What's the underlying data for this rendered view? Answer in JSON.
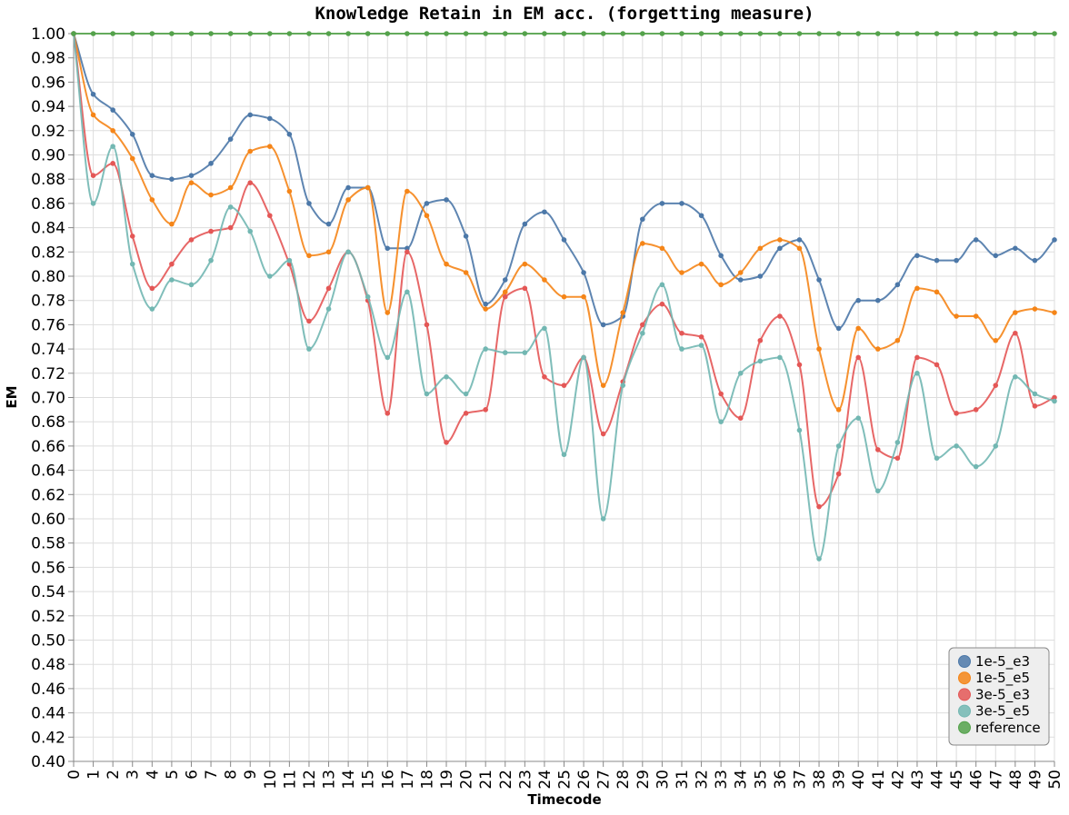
{
  "chart_data": {
    "type": "line",
    "title": "Knowledge Retain in EM acc. (forgetting measure)",
    "xlabel": "Timecode",
    "ylabel": "EM",
    "xlim": [
      0,
      50
    ],
    "ylim": [
      0.4,
      1.0
    ],
    "ytick_step": 0.02,
    "grid": true,
    "legend_placement": "bottom-right",
    "x": [
      0,
      1,
      2,
      3,
      4,
      5,
      6,
      7,
      8,
      9,
      10,
      11,
      12,
      13,
      14,
      15,
      16,
      17,
      18,
      19,
      20,
      21,
      22,
      23,
      24,
      25,
      26,
      27,
      28,
      29,
      30,
      31,
      32,
      33,
      34,
      35,
      36,
      37,
      38,
      39,
      40,
      41,
      42,
      43,
      44,
      45,
      46,
      47,
      48,
      49,
      50
    ],
    "series": [
      {
        "name": "1e-5_e3",
        "color": "#4c78a8",
        "values": [
          1.0,
          0.95,
          0.937,
          0.917,
          0.883,
          0.88,
          0.883,
          0.893,
          0.913,
          0.933,
          0.93,
          0.917,
          0.86,
          0.843,
          0.873,
          0.873,
          0.823,
          0.823,
          0.86,
          0.863,
          0.833,
          0.777,
          0.797,
          0.843,
          0.853,
          0.83,
          0.803,
          0.76,
          0.767,
          0.847,
          0.86,
          0.86,
          0.85,
          0.817,
          0.797,
          0.8,
          0.823,
          0.83,
          0.797,
          0.757,
          0.78,
          0.78,
          0.793,
          0.817,
          0.813,
          0.813,
          0.83,
          0.817,
          0.823,
          0.813,
          0.83
        ]
      },
      {
        "name": "1e-5_e5",
        "color": "#f58518",
        "values": [
          1.0,
          0.933,
          0.92,
          0.897,
          0.863,
          0.843,
          0.877,
          0.867,
          0.873,
          0.903,
          0.907,
          0.87,
          0.817,
          0.82,
          0.863,
          0.873,
          0.77,
          0.87,
          0.85,
          0.81,
          0.803,
          0.773,
          0.787,
          0.81,
          0.797,
          0.783,
          0.783,
          0.71,
          0.77,
          0.827,
          0.823,
          0.803,
          0.81,
          0.793,
          0.803,
          0.823,
          0.83,
          0.823,
          0.74,
          0.69,
          0.757,
          0.74,
          0.747,
          0.79,
          0.787,
          0.767,
          0.767,
          0.747,
          0.77,
          0.773,
          0.77
        ]
      },
      {
        "name": "3e-5_e3",
        "color": "#e45756",
        "values": [
          1.0,
          0.883,
          0.893,
          0.833,
          0.79,
          0.81,
          0.83,
          0.837,
          0.84,
          0.877,
          0.85,
          0.81,
          0.763,
          0.79,
          0.82,
          0.78,
          0.687,
          0.82,
          0.76,
          0.663,
          0.687,
          0.69,
          0.783,
          0.79,
          0.717,
          0.71,
          0.733,
          0.67,
          0.713,
          0.76,
          0.777,
          0.753,
          0.75,
          0.703,
          0.683,
          0.747,
          0.767,
          0.727,
          0.61,
          0.637,
          0.733,
          0.657,
          0.65,
          0.733,
          0.727,
          0.687,
          0.69,
          0.71,
          0.753,
          0.693,
          0.7
        ]
      },
      {
        "name": "3e-5_e5",
        "color": "#72b7b2",
        "values": [
          1.0,
          0.86,
          0.907,
          0.81,
          0.773,
          0.797,
          0.793,
          0.813,
          0.857,
          0.837,
          0.8,
          0.813,
          0.74,
          0.773,
          0.82,
          0.783,
          0.733,
          0.787,
          0.703,
          0.717,
          0.703,
          0.74,
          0.737,
          0.737,
          0.757,
          0.653,
          0.733,
          0.6,
          0.71,
          0.753,
          0.793,
          0.74,
          0.743,
          0.68,
          0.72,
          0.73,
          0.733,
          0.673,
          0.567,
          0.66,
          0.683,
          0.623,
          0.663,
          0.72,
          0.65,
          0.66,
          0.643,
          0.66,
          0.717,
          0.703,
          0.697
        ]
      },
      {
        "name": "reference",
        "color": "#54a24b",
        "values": [
          1,
          1,
          1,
          1,
          1,
          1,
          1,
          1,
          1,
          1,
          1,
          1,
          1,
          1,
          1,
          1,
          1,
          1,
          1,
          1,
          1,
          1,
          1,
          1,
          1,
          1,
          1,
          1,
          1,
          1,
          1,
          1,
          1,
          1,
          1,
          1,
          1,
          1,
          1,
          1,
          1,
          1,
          1,
          1,
          1,
          1,
          1,
          1,
          1,
          1,
          1
        ]
      }
    ]
  }
}
